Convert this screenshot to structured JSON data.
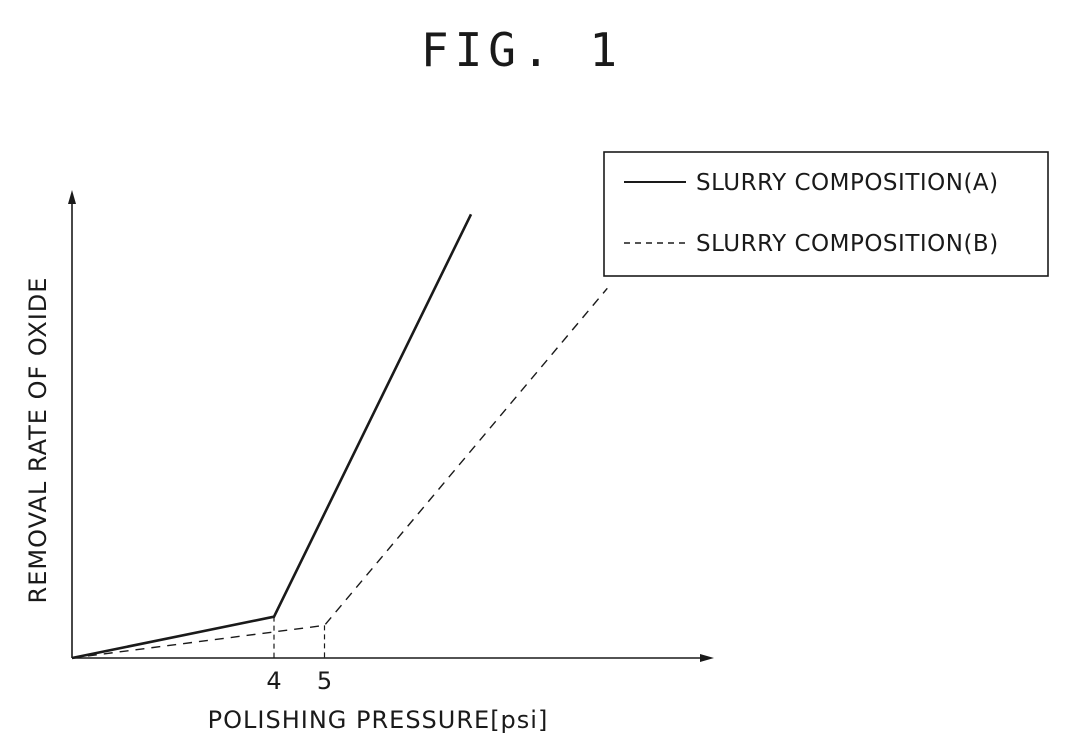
{
  "figure_label": "FIG. 1",
  "chart_data": {
    "type": "line",
    "title": "",
    "xlabel": "POLISHING PRESSURE[psi]",
    "ylabel": "REMOVAL RATE OF OXIDE",
    "xlim": [
      0,
      10.7
    ],
    "ylim": [
      0,
      10.7
    ],
    "x_ticks": [
      {
        "value": 4,
        "label": "4"
      },
      {
        "value": 5,
        "label": "5"
      }
    ],
    "legend_position": "top-right",
    "series": [
      {
        "name": "SLURRY COMPOSITION(A)",
        "style": "solid",
        "color": "#1a1a1a",
        "x": [
          0,
          4,
          7.9
        ],
        "y": [
          0,
          0.95,
          10.2
        ]
      },
      {
        "name": "SLURRY COMPOSITION(B)",
        "style": "dashed",
        "color": "#1a1a1a",
        "x": [
          0,
          5,
          10.6
        ],
        "y": [
          0,
          0.75,
          8.5
        ]
      }
    ]
  }
}
